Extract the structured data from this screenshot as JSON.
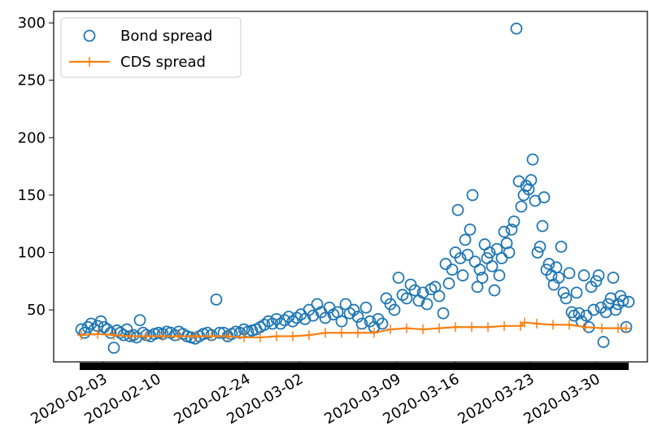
{
  "chart_data": {
    "type": "line-scatter",
    "xlim": [
      0,
      146.2
    ],
    "ylim": [
      4.7,
      310
    ],
    "xticks": [
      {
        "value": 12.2,
        "label": "2020-02-03"
      },
      {
        "value": 25.4,
        "label": "2020-02-10"
      },
      {
        "value": 47.4,
        "label": "2020-02-24"
      },
      {
        "value": 60.4,
        "label": "2020-03-02"
      },
      {
        "value": 84.4,
        "label": "2020-03-09"
      },
      {
        "value": 98.8,
        "label": "2020-03-16"
      },
      {
        "value": 117.2,
        "label": "2020-03-23"
      },
      {
        "value": 133.4,
        "label": "2020-03-30"
      }
    ],
    "yticks": [
      50,
      100,
      150,
      200,
      250,
      300
    ],
    "legend": "upper left",
    "series": [
      {
        "name": "Bond spread",
        "color": "#1f77b4",
        "marker": "o",
        "x": [
          6.8,
          7.6,
          8.4,
          9.2,
          10,
          10.8,
          11.6,
          12.4,
          13.2,
          14,
          14.8,
          15.6,
          16.4,
          17.2,
          18,
          18.8,
          19.6,
          20.4,
          21.2,
          22,
          22.8,
          23.8,
          24.8,
          25.8,
          26.8,
          27.8,
          28.8,
          29.8,
          30.8,
          31.8,
          32.8,
          33.8,
          34.8,
          35.8,
          36.8,
          37.8,
          38.8,
          40,
          40.8,
          41.8,
          42.8,
          43.8,
          44.8,
          45.8,
          46.8,
          47.8,
          48.8,
          49.8,
          50.8,
          51.8,
          52.8,
          53.8,
          54.8,
          55.8,
          56.8,
          57.8,
          58.8,
          59.8,
          60.8,
          61.8,
          62.8,
          63.8,
          64.8,
          65.8,
          66.8,
          67.8,
          68.8,
          69.8,
          70.8,
          71.8,
          72.8,
          73.8,
          74.8,
          75.8,
          76.8,
          77.8,
          78.8,
          79.8,
          80.8,
          81.8,
          82.8,
          83.8,
          84.8,
          85.8,
          86.8,
          87.8,
          88.8,
          89.8,
          90.8,
          91.8,
          92.8,
          93.8,
          94.8,
          95.8,
          96.4,
          97.2,
          98,
          98.8,
          99.4,
          100,
          100.6,
          101.2,
          101.8,
          102.4,
          103,
          103.6,
          104.2,
          104.8,
          105.4,
          106,
          106.6,
          107.2,
          107.8,
          108.4,
          109,
          109.6,
          110.2,
          110.8,
          111.4,
          112,
          112.6,
          113.2,
          113.8,
          114.4,
          115,
          115.6,
          116.2,
          116.8,
          117.4,
          117.8,
          118.4,
          119,
          119.6,
          120.2,
          120.6,
          121.2,
          121.8,
          122.4,
          123,
          123.6,
          124.2,
          124.8,
          125.4,
          126,
          126.8,
          127.4,
          128,
          128.6,
          129.2,
          129.8,
          130.4,
          131,
          131.6,
          132.2,
          132.8,
          133.4,
          134,
          134.6,
          135.2,
          135.8,
          136.4,
          137,
          137.6,
          138.2,
          138.8,
          139.4,
          140,
          140.8,
          141.4
        ],
        "values": [
          33,
          30,
          35,
          38,
          33,
          36,
          40,
          35,
          33,
          30,
          17,
          32,
          30,
          28,
          33,
          27,
          28,
          26,
          41,
          30,
          28,
          27,
          29,
          30,
          29,
          31,
          30,
          28,
          31,
          29,
          27,
          26,
          25,
          27,
          29,
          30,
          28,
          59,
          30,
          30,
          27,
          29,
          31,
          30,
          33,
          31,
          32,
          33,
          35,
          37,
          40,
          38,
          42,
          38,
          41,
          44,
          40,
          43,
          46,
          42,
          50,
          45,
          55,
          48,
          43,
          52,
          46,
          48,
          40,
          55,
          47,
          50,
          44,
          38,
          52,
          40,
          35,
          42,
          38,
          60,
          55,
          50,
          78,
          63,
          60,
          72,
          67,
          58,
          65,
          55,
          68,
          70,
          62,
          47,
          90,
          73,
          85,
          100,
          137,
          95,
          80,
          111,
          98,
          120,
          150,
          92,
          70,
          85,
          78,
          107,
          95,
          100,
          88,
          67,
          103,
          80,
          95,
          118,
          108,
          100,
          120,
          127,
          295,
          162,
          140,
          150,
          158,
          155,
          163,
          181,
          145,
          100,
          105,
          123,
          148,
          85,
          90,
          80,
          72,
          87,
          78,
          105,
          65,
          60,
          82,
          48,
          45,
          65,
          47,
          40,
          80,
          45,
          35,
          70,
          50,
          75,
          80,
          52,
          22,
          48,
          55,
          60,
          78,
          50,
          55,
          62,
          58,
          35,
          57
        ]
      },
      {
        "name": "CDS spread",
        "color": "#ff7f0e",
        "marker": "+",
        "x": [
          6.8,
          10.8,
          14.8,
          18.8,
          22.8,
          26.8,
          30.8,
          34.8,
          38.8,
          42.8,
          46.8,
          50.8,
          54.8,
          58.8,
          62.8,
          66.8,
          70.8,
          74.8,
          78.8,
          82.8,
          86.8,
          90.8,
          94.8,
          98.8,
          102.8,
          106.8,
          110.8,
          114.8,
          115.8,
          118.8,
          122.8,
          126.8,
          130.8,
          134.8,
          138.8,
          140.8
        ],
        "values": [
          28,
          29,
          28,
          27,
          27,
          27,
          27,
          27,
          27,
          27,
          26,
          26,
          27,
          27,
          28,
          30,
          30,
          30,
          30,
          33,
          34,
          33,
          34,
          35,
          35,
          35,
          36,
          36,
          39,
          38,
          37,
          37,
          35,
          34,
          34,
          34
        ]
      }
    ]
  }
}
